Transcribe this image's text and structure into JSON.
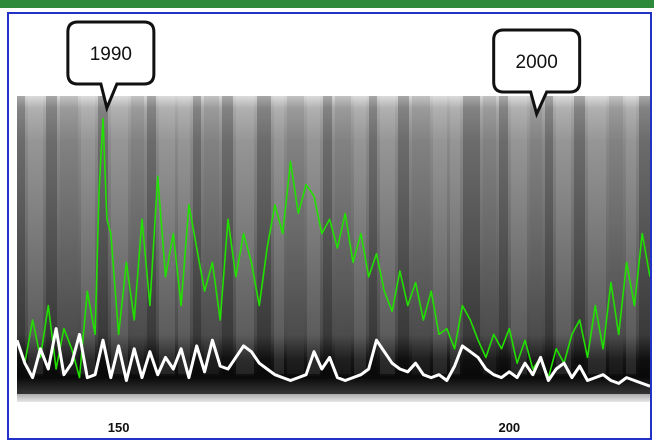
{
  "chart_data": {
    "type": "line",
    "title": "",
    "xlabel": "",
    "ylabel": "",
    "x_ticks": [
      150,
      200
    ],
    "xlim": [
      137,
      218
    ],
    "annotations": [
      {
        "label": "1990",
        "x": 148.5
      },
      {
        "label": "2000",
        "x": 203.5
      }
    ],
    "series": [
      {
        "color": "#22e000",
        "x": [
          137,
          138,
          139,
          140,
          141,
          142,
          143,
          144,
          145,
          146,
          147,
          147.5,
          148,
          148.5,
          149,
          150,
          151,
          152,
          153,
          154,
          155,
          156,
          157,
          158,
          159,
          160,
          161,
          162,
          163,
          164,
          165,
          166,
          167,
          168,
          169,
          170,
          171,
          172,
          173,
          174,
          175,
          176,
          177,
          178,
          179,
          180,
          181,
          182,
          183,
          184,
          185,
          186,
          187,
          188,
          189,
          190,
          191,
          192,
          193,
          194,
          195,
          196,
          197,
          198,
          199,
          200,
          201,
          202,
          203,
          204,
          205,
          206,
          207,
          208,
          209,
          210,
          211,
          212,
          213,
          214,
          215,
          216,
          217,
          218
        ],
        "values": [
          0.18,
          0.1,
          0.25,
          0.12,
          0.3,
          0.08,
          0.22,
          0.15,
          0.05,
          0.35,
          0.2,
          0.7,
          0.95,
          0.6,
          0.55,
          0.2,
          0.45,
          0.25,
          0.6,
          0.3,
          0.75,
          0.4,
          0.55,
          0.3,
          0.65,
          0.5,
          0.35,
          0.45,
          0.25,
          0.6,
          0.4,
          0.55,
          0.45,
          0.3,
          0.5,
          0.65,
          0.55,
          0.8,
          0.62,
          0.72,
          0.68,
          0.55,
          0.6,
          0.5,
          0.62,
          0.45,
          0.55,
          0.4,
          0.48,
          0.35,
          0.28,
          0.42,
          0.3,
          0.38,
          0.25,
          0.35,
          0.2,
          0.22,
          0.15,
          0.3,
          0.25,
          0.18,
          0.12,
          0.2,
          0.15,
          0.22,
          0.1,
          0.18,
          0.08,
          0.12,
          0.05,
          0.15,
          0.1,
          0.2,
          0.25,
          0.12,
          0.3,
          0.15,
          0.38,
          0.2,
          0.45,
          0.3,
          0.55,
          0.4
        ]
      },
      {
        "color": "#ffffff",
        "x": [
          137,
          138,
          139,
          140,
          141,
          142,
          143,
          144,
          145,
          146,
          147,
          148,
          149,
          150,
          151,
          152,
          153,
          154,
          155,
          156,
          157,
          158,
          159,
          160,
          161,
          162,
          163,
          164,
          165,
          166,
          167,
          168,
          169,
          170,
          171,
          172,
          173,
          174,
          175,
          176,
          177,
          178,
          179,
          180,
          181,
          182,
          183,
          184,
          185,
          186,
          187,
          188,
          189,
          190,
          191,
          192,
          193,
          194,
          195,
          196,
          197,
          198,
          199,
          200,
          201,
          202,
          203,
          204,
          205,
          206,
          207,
          208,
          209,
          210,
          211,
          212,
          213,
          214,
          215,
          216,
          217,
          218
        ],
        "values": [
          0.18,
          0.1,
          0.05,
          0.15,
          0.08,
          0.22,
          0.06,
          0.1,
          0.2,
          0.05,
          0.06,
          0.18,
          0.05,
          0.16,
          0.04,
          0.15,
          0.05,
          0.14,
          0.06,
          0.12,
          0.08,
          0.15,
          0.05,
          0.16,
          0.07,
          0.18,
          0.09,
          0.08,
          0.12,
          0.16,
          0.14,
          0.1,
          0.08,
          0.06,
          0.05,
          0.04,
          0.05,
          0.06,
          0.14,
          0.08,
          0.12,
          0.05,
          0.04,
          0.05,
          0.06,
          0.08,
          0.18,
          0.14,
          0.1,
          0.08,
          0.07,
          0.1,
          0.06,
          0.05,
          0.06,
          0.04,
          0.09,
          0.16,
          0.14,
          0.12,
          0.08,
          0.06,
          0.05,
          0.07,
          0.05,
          0.1,
          0.06,
          0.12,
          0.04,
          0.08,
          0.1,
          0.05,
          0.09,
          0.04,
          0.05,
          0.06,
          0.04,
          0.03,
          0.05,
          0.04,
          0.03,
          0.02
        ]
      }
    ]
  }
}
